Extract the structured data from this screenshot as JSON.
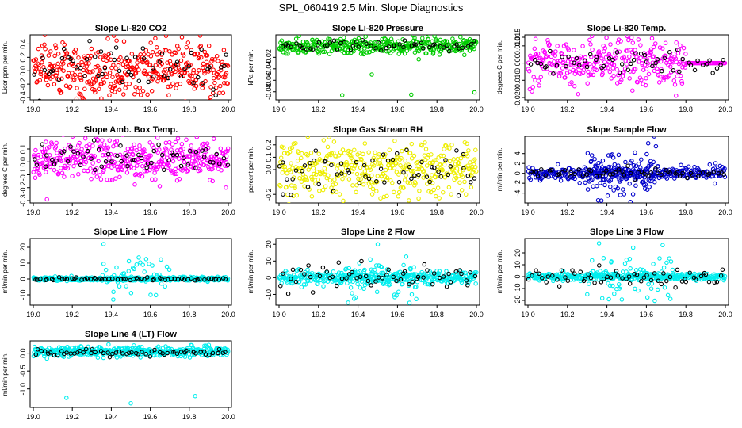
{
  "title": "SPL_060419  2.5 Min. Slope Diagnostics",
  "chart_data": [
    {
      "type": "scatter",
      "title": "Slope Li-820 CO2",
      "ylabel": "Licor ppm per min.",
      "xlim": [
        19.0,
        20.0
      ],
      "ylim": [
        -0.4,
        0.5
      ],
      "xticks": [
        "19.0",
        "19.2",
        "19.4",
        "19.6",
        "19.8",
        "20.0"
      ],
      "yticks": [
        {
          "v": -0.4,
          "t": "-0.4"
        },
        {
          "v": -0.2,
          "t": "-0.2"
        },
        {
          "v": 0.0,
          "t": "0.0"
        },
        {
          "v": 0.2,
          "t": "0.2"
        },
        {
          "v": 0.4,
          "t": "0.4"
        }
      ],
      "color": "#ff0000",
      "series": [
        {
          "name": "all",
          "color": "#ff0000",
          "x_range": [
            19.0,
            20.0
          ],
          "center": 0.0,
          "spread": 0.22,
          "count": 420,
          "seed": 11
        },
        {
          "name": "selected",
          "color": "#000000",
          "x_range": [
            19.0,
            20.0
          ],
          "center": 0.0,
          "spread": 0.18,
          "count": 60,
          "seed": 12
        }
      ],
      "outliers": []
    },
    {
      "type": "scatter",
      "title": "Slope Li-820 Pressure",
      "ylabel": "kPa per min.",
      "xlim": [
        19.0,
        20.0
      ],
      "ylim": [
        -0.09,
        0.015
      ],
      "xticks": [
        "19.0",
        "19.2",
        "19.4",
        "19.6",
        "19.8",
        "20.0"
      ],
      "yticks": [
        {
          "v": -0.08,
          "t": "-0.08"
        },
        {
          "v": -0.06,
          "t": "-0.06"
        },
        {
          "v": -0.04,
          "t": "-0.04"
        },
        {
          "v": -0.02,
          "t": "-0.02"
        }
      ],
      "color": "#00cc00",
      "series": [
        {
          "name": "all",
          "color": "#00cc00",
          "x_range": [
            19.0,
            20.0
          ],
          "center": 0.0,
          "spread": 0.007,
          "count": 380,
          "seed": 21
        },
        {
          "name": "selected",
          "color": "#000000",
          "x_range": [
            19.0,
            20.0
          ],
          "center": 0.0,
          "spread": 0.004,
          "count": 55,
          "seed": 22
        }
      ],
      "outliers": [
        {
          "x": 19.32,
          "y": -0.086,
          "c": "#00cc00"
        },
        {
          "x": 19.67,
          "y": -0.085,
          "c": "#00cc00"
        },
        {
          "x": 19.99,
          "y": -0.081,
          "c": "#00cc00"
        },
        {
          "x": 19.47,
          "y": -0.05,
          "c": "#00cc00"
        }
      ]
    },
    {
      "type": "scatter",
      "title": "Slope Li-820 Temp.",
      "ylabel": "degrees C per min.",
      "xlim": [
        19.0,
        20.0
      ],
      "ylim": [
        -0.02,
        0.015
      ],
      "xticks": [
        "19.0",
        "19.2",
        "19.4",
        "19.6",
        "19.8",
        "20.0"
      ],
      "yticks": [
        {
          "v": -0.02,
          "t": "-0.020"
        },
        {
          "v": -0.01,
          "t": "-0.010"
        },
        {
          "v": 0.0,
          "t": "0.000"
        },
        {
          "v": 0.01,
          "t": "0.010"
        },
        {
          "v": 0.015,
          "t": "0.015"
        }
      ],
      "color": "#ff00ff",
      "series": [
        {
          "name": "all",
          "color": "#ff00ff",
          "x_range": [
            19.0,
            19.8
          ],
          "center": 0.0,
          "spread": 0.006,
          "count": 300,
          "seed": 31
        },
        {
          "name": "flat",
          "color": "#ff00ff",
          "x_range": [
            19.8,
            20.0
          ],
          "center": 0.0,
          "spread": 0.0,
          "count": 45,
          "seed": 32
        },
        {
          "name": "selected",
          "color": "#000000",
          "x_range": [
            19.0,
            20.0
          ],
          "center": 0.0,
          "spread": 0.004,
          "count": 55,
          "seed": 33
        }
      ],
      "outliers": [
        {
          "x": 19.75,
          "y": -0.019,
          "c": "#ff00ff"
        }
      ]
    },
    {
      "type": "scatter",
      "title": "Slope Amb. Box Temp.",
      "ylabel": "degrees C per min.",
      "xlim": [
        19.0,
        20.0
      ],
      "ylim": [
        -0.3,
        0.18
      ],
      "xticks": [
        "19.0",
        "19.2",
        "19.4",
        "19.6",
        "19.8",
        "20.0"
      ],
      "yticks": [
        {
          "v": -0.3,
          "t": "-0.3"
        },
        {
          "v": -0.2,
          "t": "-0.2"
        },
        {
          "v": -0.1,
          "t": "-0.1"
        },
        {
          "v": 0.0,
          "t": "0.0"
        },
        {
          "v": 0.1,
          "t": "0.1"
        }
      ],
      "color": "#ff00ff",
      "series": [
        {
          "name": "all",
          "color": "#ff00ff",
          "x_range": [
            19.0,
            20.0
          ],
          "center": 0.02,
          "spread": 0.08,
          "count": 420,
          "seed": 41
        },
        {
          "name": "selected",
          "color": "#000000",
          "x_range": [
            19.0,
            20.0
          ],
          "center": 0.02,
          "spread": 0.05,
          "count": 60,
          "seed": 42
        }
      ],
      "outliers": [
        {
          "x": 19.07,
          "y": -0.29,
          "c": "#ff00ff"
        }
      ]
    },
    {
      "type": "scatter",
      "title": "Slope Gas Stream RH",
      "ylabel": "percent per min.",
      "xlim": [
        19.0,
        20.0
      ],
      "ylim": [
        -0.25,
        0.25
      ],
      "xticks": [
        "19.0",
        "19.2",
        "19.4",
        "19.6",
        "19.8",
        "20.0"
      ],
      "yticks": [
        {
          "v": -0.2,
          "t": "-0.2"
        },
        {
          "v": 0.0,
          "t": "0.0"
        },
        {
          "v": 0.1,
          "t": "0.1"
        },
        {
          "v": 0.2,
          "t": "0.2"
        }
      ],
      "color": "#ffff00",
      "series": [
        {
          "name": "all",
          "color": "#eeee00",
          "x_range": [
            19.0,
            20.0
          ],
          "center": 0.0,
          "spread": 0.11,
          "count": 400,
          "seed": 51
        },
        {
          "name": "selected",
          "color": "#000000",
          "x_range": [
            19.0,
            20.0
          ],
          "center": 0.0,
          "spread": 0.09,
          "count": 60,
          "seed": 52
        }
      ],
      "outliers": [
        {
          "x": 19.02,
          "y": -0.2,
          "c": "#000000"
        }
      ]
    },
    {
      "type": "scatter",
      "title": "Slope Sample Flow",
      "ylabel": "ml/min per min.",
      "xlim": [
        19.0,
        20.0
      ],
      "ylim": [
        -5.5,
        7.0
      ],
      "xticks": [
        "19.0",
        "19.2",
        "19.4",
        "19.6",
        "19.8",
        "20.0"
      ],
      "yticks": [
        {
          "v": -4,
          "t": "-4"
        },
        {
          "v": -2,
          "t": "-2"
        },
        {
          "v": 0,
          "t": "0"
        },
        {
          "v": 2,
          "t": "2"
        },
        {
          "v": 4,
          "t": "4"
        }
      ],
      "color": "#0000cc",
      "series": [
        {
          "name": "all",
          "color": "#0000cc",
          "x_range": [
            19.0,
            20.0
          ],
          "center": 0.0,
          "spread": 0.7,
          "count": 330,
          "seed": 61
        },
        {
          "name": "burst",
          "color": "#0000cc",
          "x_range": [
            19.3,
            19.65
          ],
          "center": 0.0,
          "spread": 2.6,
          "count": 110,
          "seed": 62
        },
        {
          "name": "selected",
          "color": "#000000",
          "x_range": [
            19.0,
            20.0
          ],
          "center": 0.0,
          "spread": 0.5,
          "count": 60,
          "seed": 63
        }
      ],
      "outliers": []
    },
    {
      "type": "scatter",
      "title": "Slope Line 1 Flow",
      "ylabel": "ml/min per min.",
      "xlim": [
        19.0,
        20.0
      ],
      "ylim": [
        -15,
        24
      ],
      "xticks": [
        "19.0",
        "19.2",
        "19.4",
        "19.6",
        "19.8",
        "20.0"
      ],
      "yticks": [
        {
          "v": -10,
          "t": "-10"
        },
        {
          "v": 0,
          "t": "0"
        },
        {
          "v": 10,
          "t": "10"
        },
        {
          "v": 20,
          "t": "20"
        }
      ],
      "color": "#00eeee",
      "series": [
        {
          "name": "all",
          "color": "#00eeee",
          "x_range": [
            19.0,
            20.0
          ],
          "center": 0.0,
          "spread": 0.6,
          "count": 380,
          "seed": 71
        },
        {
          "name": "burst",
          "color": "#00eeee",
          "x_range": [
            19.35,
            19.7
          ],
          "center": 0.0,
          "spread": 7.0,
          "count": 40,
          "seed": 72
        },
        {
          "name": "selected",
          "color": "#000000",
          "x_range": [
            19.0,
            20.0
          ],
          "center": 0.0,
          "spread": 0.4,
          "count": 60,
          "seed": 73
        }
      ],
      "outliers": [
        {
          "x": 19.36,
          "y": 22,
          "c": "#00eeee"
        },
        {
          "x": 19.41,
          "y": -13,
          "c": "#00eeee"
        }
      ]
    },
    {
      "type": "scatter",
      "title": "Slope Line 2 Flow",
      "ylabel": "ml/min per min.",
      "xlim": [
        19.0,
        20.0
      ],
      "ylim": [
        -15,
        22
      ],
      "xticks": [
        "19.0",
        "19.2",
        "19.4",
        "19.6",
        "19.8",
        "20.0"
      ],
      "yticks": [
        {
          "v": -10,
          "t": "-10"
        },
        {
          "v": 0,
          "t": "0"
        },
        {
          "v": 10,
          "t": "10"
        },
        {
          "v": 20,
          "t": "20"
        }
      ],
      "color": "#00eeee",
      "series": [
        {
          "name": "all",
          "color": "#00eeee",
          "x_range": [
            19.0,
            20.0
          ],
          "center": 0.0,
          "spread": 2.0,
          "count": 360,
          "seed": 81
        },
        {
          "name": "burst",
          "color": "#00eeee",
          "x_range": [
            19.3,
            19.7
          ],
          "center": 0.0,
          "spread": 7.5,
          "count": 70,
          "seed": 82
        },
        {
          "name": "selected",
          "color": "#000000",
          "x_range": [
            19.0,
            20.0
          ],
          "center": 0.0,
          "spread": 3.5,
          "count": 60,
          "seed": 83
        }
      ],
      "outliers": [
        {
          "x": 19.5,
          "y": 20,
          "c": "#00eeee"
        }
      ]
    },
    {
      "type": "scatter",
      "title": "Slope Line 3 Flow",
      "ylabel": "ml/min per min.",
      "xlim": [
        19.0,
        20.0
      ],
      "ylim": [
        -22,
        30
      ],
      "xticks": [
        "19.0",
        "19.2",
        "19.4",
        "19.6",
        "19.8",
        "20.0"
      ],
      "yticks": [
        {
          "v": -20,
          "t": "-20"
        },
        {
          "v": -10,
          "t": "-10"
        },
        {
          "v": 0,
          "t": "0"
        },
        {
          "v": 10,
          "t": "10"
        },
        {
          "v": 20,
          "t": "20"
        }
      ],
      "color": "#00eeee",
      "series": [
        {
          "name": "all",
          "color": "#00eeee",
          "x_range": [
            19.0,
            20.0
          ],
          "center": 0.0,
          "spread": 1.5,
          "count": 360,
          "seed": 91
        },
        {
          "name": "burst",
          "color": "#00eeee",
          "x_range": [
            19.3,
            19.75
          ],
          "center": 0.0,
          "spread": 9.0,
          "count": 70,
          "seed": 92
        },
        {
          "name": "selected",
          "color": "#000000",
          "x_range": [
            19.0,
            20.0
          ],
          "center": 0.0,
          "spread": 3.5,
          "count": 60,
          "seed": 93
        }
      ],
      "outliers": [
        {
          "x": 19.36,
          "y": 28,
          "c": "#00eeee"
        },
        {
          "x": 19.41,
          "y": -19,
          "c": "#00eeee"
        }
      ]
    },
    {
      "type": "scatter",
      "title": "Slope Line 4 (LT) Flow",
      "ylabel": "ml/min per min.",
      "xlim": [
        19.0,
        20.0
      ],
      "ylim": [
        -1.45,
        0.28
      ],
      "xticks": [
        "19.0",
        "19.2",
        "19.4",
        "19.6",
        "19.8",
        "20.0"
      ],
      "yticks": [
        {
          "v": -1.0,
          "t": "-1.0"
        },
        {
          "v": -0.5,
          "t": "-0.5"
        },
        {
          "v": 0.0,
          "t": "0.0"
        }
      ],
      "color": "#00eeee",
      "series": [
        {
          "name": "all",
          "color": "#00eeee",
          "x_range": [
            19.0,
            20.0
          ],
          "center": 0.05,
          "spread": 0.07,
          "count": 420,
          "seed": 101
        },
        {
          "name": "selected",
          "color": "#000000",
          "x_range": [
            19.0,
            20.0
          ],
          "center": 0.0,
          "spread": 0.06,
          "count": 60,
          "seed": 102
        }
      ],
      "outliers": [
        {
          "x": 19.17,
          "y": -1.25,
          "c": "#00eeee"
        },
        {
          "x": 19.5,
          "y": -1.4,
          "c": "#00eeee"
        },
        {
          "x": 19.83,
          "y": -1.2,
          "c": "#00eeee"
        }
      ]
    }
  ]
}
